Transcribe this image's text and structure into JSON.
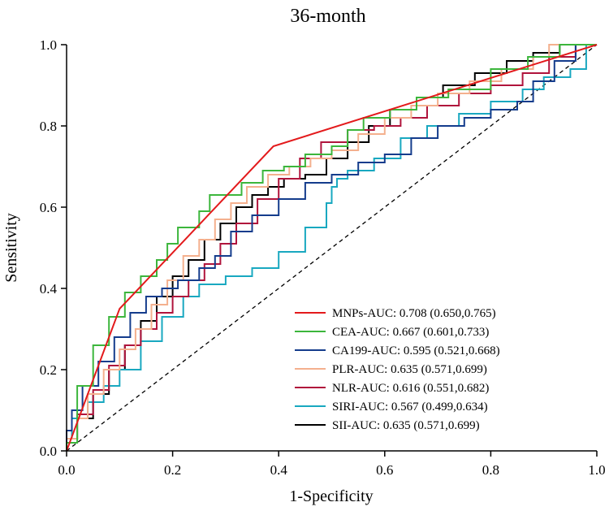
{
  "chart_data": {
    "type": "line",
    "title": "36-month",
    "xlabel": "1-Specificity",
    "ylabel": "Sensitivity",
    "xlim": [
      0,
      1
    ],
    "ylim": [
      0,
      1
    ],
    "xticks": [
      "0.0",
      "0.2",
      "0.4",
      "0.6",
      "0.8",
      "1.0"
    ],
    "yticks": [
      "0.0",
      "0.2",
      "0.4",
      "0.6",
      "0.8",
      "1.0"
    ],
    "grid": false,
    "legend_position": "bottom-right",
    "reference_line": {
      "style": "dashed",
      "color": "#000000",
      "x": [
        0,
        1
      ],
      "y": [
        0,
        1
      ]
    },
    "series": [
      {
        "name": "MNPs",
        "label": "MNPs-AUC: 0.708 (0.650,0.765)",
        "color": "#e31a1c",
        "x": [
          0,
          0.1,
          0.39,
          1.0
        ],
        "y": [
          0,
          0.35,
          0.75,
          1.0
        ]
      },
      {
        "name": "CEA",
        "label": "CEA-AUC: 0.667 (0.601,0.733)",
        "color": "#3cb63c",
        "x": [
          0,
          0.02,
          0.02,
          0.05,
          0.08,
          0.11,
          0.14,
          0.17,
          0.19,
          0.21,
          0.25,
          0.27,
          0.33,
          0.37,
          0.41,
          0.45,
          0.5,
          0.53,
          0.56,
          0.61,
          0.66,
          0.72,
          0.8,
          0.87,
          0.93,
          1.0
        ],
        "y": [
          0,
          0.02,
          0.1,
          0.16,
          0.26,
          0.33,
          0.39,
          0.43,
          0.47,
          0.51,
          0.55,
          0.59,
          0.63,
          0.66,
          0.69,
          0.7,
          0.73,
          0.75,
          0.79,
          0.82,
          0.84,
          0.87,
          0.89,
          0.94,
          0.97,
          1.0
        ]
      },
      {
        "name": "CA199",
        "label": "CA199-AUC: 0.595 (0.521,0.668)",
        "color": "#143c8c",
        "x": [
          0,
          0.01,
          0.03,
          0.06,
          0.09,
          0.12,
          0.15,
          0.18,
          0.21,
          0.25,
          0.28,
          0.31,
          0.35,
          0.4,
          0.45,
          0.5,
          0.55,
          0.6,
          0.65,
          0.7,
          0.75,
          0.8,
          0.85,
          0.88,
          0.92,
          0.96,
          1.0
        ],
        "y": [
          0,
          0.05,
          0.1,
          0.16,
          0.22,
          0.28,
          0.34,
          0.38,
          0.4,
          0.42,
          0.45,
          0.48,
          0.54,
          0.58,
          0.62,
          0.66,
          0.68,
          0.71,
          0.73,
          0.77,
          0.8,
          0.82,
          0.84,
          0.86,
          0.91,
          0.96,
          1.0
        ]
      },
      {
        "name": "PLR",
        "label": "PLR-AUC: 0.635 (0.571,0.699)",
        "color": "#f4b08e",
        "x": [
          0,
          0.02,
          0.04,
          0.07,
          0.1,
          0.13,
          0.16,
          0.19,
          0.22,
          0.25,
          0.28,
          0.31,
          0.34,
          0.38,
          0.42,
          0.46,
          0.5,
          0.55,
          0.6,
          0.65,
          0.7,
          0.76,
          0.82,
          0.88,
          0.91,
          0.94,
          1.0
        ],
        "y": [
          0,
          0.03,
          0.08,
          0.14,
          0.2,
          0.25,
          0.3,
          0.36,
          0.42,
          0.48,
          0.52,
          0.57,
          0.61,
          0.65,
          0.68,
          0.7,
          0.72,
          0.74,
          0.78,
          0.82,
          0.85,
          0.88,
          0.91,
          0.94,
          0.97,
          1.0,
          1.0
        ]
      },
      {
        "name": "NLR",
        "label": "NLR-AUC: 0.616 (0.551,0.682)",
        "color": "#b0143c",
        "x": [
          0,
          0.02,
          0.05,
          0.08,
          0.11,
          0.14,
          0.17,
          0.2,
          0.23,
          0.26,
          0.29,
          0.32,
          0.36,
          0.4,
          0.44,
          0.48,
          0.53,
          0.58,
          0.63,
          0.68,
          0.74,
          0.8,
          0.86,
          0.91,
          0.96,
          1.0
        ],
        "y": [
          0,
          0.03,
          0.09,
          0.15,
          0.21,
          0.26,
          0.3,
          0.34,
          0.38,
          0.42,
          0.46,
          0.51,
          0.56,
          0.62,
          0.67,
          0.72,
          0.76,
          0.79,
          0.8,
          0.82,
          0.85,
          0.88,
          0.9,
          0.93,
          0.97,
          1.0
        ]
      },
      {
        "name": "SIRI",
        "label": "SIRI-AUC: 0.567 (0.499,0.634)",
        "color": "#19a8c0",
        "x": [
          0,
          0.01,
          0.04,
          0.07,
          0.1,
          0.14,
          0.18,
          0.22,
          0.25,
          0.3,
          0.35,
          0.4,
          0.45,
          0.49,
          0.5,
          0.51,
          0.53,
          0.58,
          0.63,
          0.68,
          0.74,
          0.8,
          0.86,
          0.9,
          0.95,
          0.98,
          1.0
        ],
        "y": [
          0,
          0.03,
          0.08,
          0.12,
          0.16,
          0.2,
          0.27,
          0.33,
          0.38,
          0.41,
          0.43,
          0.45,
          0.49,
          0.55,
          0.61,
          0.65,
          0.67,
          0.69,
          0.72,
          0.77,
          0.8,
          0.83,
          0.86,
          0.89,
          0.92,
          0.94,
          1.0
        ]
      },
      {
        "name": "SII",
        "label": "SII-AUC: 0.635 (0.571,0.699)",
        "color": "#000000",
        "x": [
          0,
          0.02,
          0.05,
          0.08,
          0.11,
          0.14,
          0.17,
          0.2,
          0.23,
          0.26,
          0.29,
          0.32,
          0.35,
          0.38,
          0.41,
          0.45,
          0.49,
          0.53,
          0.57,
          0.61,
          0.66,
          0.71,
          0.77,
          0.83,
          0.88,
          0.93,
          1.0
        ],
        "y": [
          0,
          0.03,
          0.08,
          0.14,
          0.2,
          0.26,
          0.32,
          0.38,
          0.43,
          0.47,
          0.52,
          0.56,
          0.6,
          0.63,
          0.65,
          0.67,
          0.68,
          0.72,
          0.76,
          0.8,
          0.84,
          0.87,
          0.9,
          0.93,
          0.96,
          0.98,
          1.0
        ]
      }
    ]
  }
}
